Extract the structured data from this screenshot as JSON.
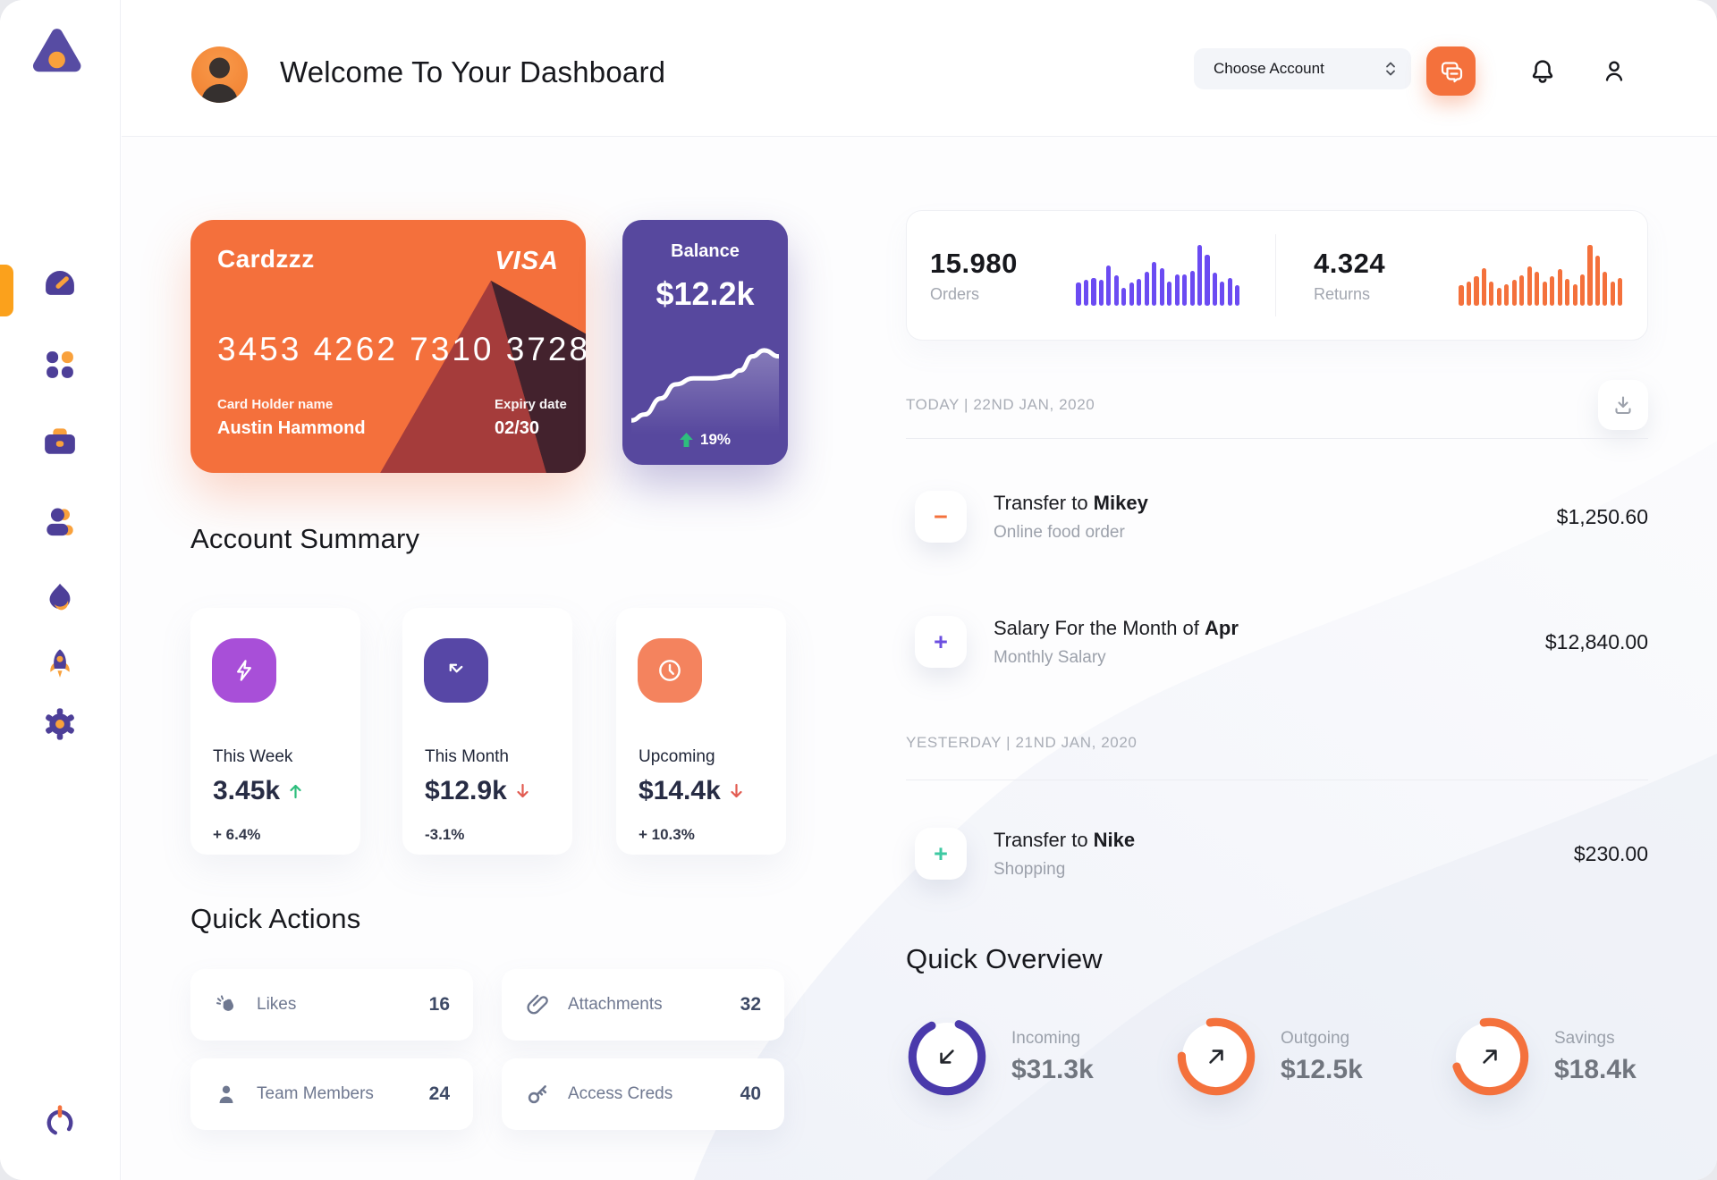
{
  "header": {
    "title": "Welcome To Your Dashboard",
    "account_selector_label": "Choose Account"
  },
  "sidebar": {
    "active_item": "dashboard",
    "accent_color": "#FBA11C",
    "items": [
      "dashboard",
      "apps",
      "work",
      "team",
      "trending",
      "launch",
      "settings"
    ]
  },
  "credit_card": {
    "name": "Cardzzz",
    "brand": "VISA",
    "number": "3453 4262 7310 3728",
    "holder_label": "Card Holder name",
    "holder": "Austin Hammond",
    "expiry_label": "Expiry date",
    "expiry": "02/30",
    "color": "#F4703C"
  },
  "balance_card": {
    "label": "Balance",
    "value": "$12.2k",
    "change": "19%",
    "trend": "up",
    "color": "#57489E"
  },
  "stats": {
    "orders": {
      "value": "15.980",
      "label": "Orders"
    },
    "returns": {
      "value": "4.324",
      "label": "Returns"
    }
  },
  "transactions": {
    "groups": [
      {
        "header": "TODAY | 22ND JAN, 2020"
      },
      {
        "header": "YESTERDAY | 21ND JAN, 2020"
      }
    ],
    "rows": [
      {
        "sign": "−",
        "sign_color": "#F4713C",
        "title_prefix": "Transfer to ",
        "title_bold": "Mikey",
        "subtitle": "Online food order",
        "amount": "$1,250.60"
      },
      {
        "sign": "+",
        "sign_color": "#6C4FE0",
        "title_prefix": "Salary For the Month of ",
        "title_bold": "Apr",
        "subtitle": "Monthly Salary",
        "amount": "$12,840.00"
      },
      {
        "sign": "+",
        "sign_color": "#3EC9A2",
        "title_prefix": "Transfer to ",
        "title_bold": "Nike",
        "subtitle": "Shopping",
        "amount": "$230.00"
      }
    ]
  },
  "account_summary": {
    "title": "Account Summary",
    "cards": [
      {
        "icon": "lightning-icon",
        "icon_bg": "#A84FD8",
        "label": "This Week",
        "value": "3.45k",
        "trend": "up",
        "percent": "+ 6.4%"
      },
      {
        "icon": "bounce-arrow-icon",
        "icon_bg": "#5747A6",
        "label": "This Month",
        "value": "$12.9k",
        "trend": "down",
        "percent": "-3.1%"
      },
      {
        "icon": "clock-icon",
        "icon_bg": "#F4835E",
        "label": "Upcoming",
        "value": "$14.4k",
        "trend": "down",
        "percent": "+ 10.3%"
      }
    ],
    "trend_up_color": "#2EBE7D",
    "trend_down_color": "#E25C52"
  },
  "quick_actions": {
    "title": "Quick Actions",
    "items": [
      {
        "icon": "clap-icon",
        "label": "Likes",
        "count": "16"
      },
      {
        "icon": "paperclip-icon",
        "label": "Attachments",
        "count": "32"
      },
      {
        "icon": "person-icon",
        "label": "Team Members",
        "count": "24"
      },
      {
        "icon": "key-icon",
        "label": "Access Creds",
        "count": "40"
      }
    ]
  },
  "quick_overview": {
    "title": "Quick Overview",
    "items": [
      {
        "label": "Incoming",
        "value": "$31.3k",
        "chart": "incoming_ring",
        "direction": "down-left"
      },
      {
        "label": "Outgoing",
        "value": "$12.5k",
        "chart": "outgoing_ring",
        "direction": "up-right"
      },
      {
        "label": "Savings",
        "value": "$18.4k",
        "chart": "savings_ring",
        "direction": "up-right"
      }
    ]
  },
  "chart_data": [
    {
      "type": "bar",
      "name": "orders_mini",
      "title": "Orders mini bar chart",
      "unit": "relative",
      "color": "#6B4BF2",
      "values": [
        38,
        42,
        46,
        42,
        66,
        50,
        30,
        38,
        44,
        56,
        72,
        62,
        40,
        52,
        52,
        58,
        100,
        84,
        54,
        40,
        46,
        34
      ]
    },
    {
      "type": "bar",
      "name": "returns_mini",
      "title": "Returns mini bar chart",
      "unit": "relative",
      "color": "#F4713C",
      "values": [
        34,
        40,
        48,
        62,
        40,
        30,
        36,
        42,
        50,
        64,
        56,
        40,
        48,
        60,
        44,
        36,
        52,
        100,
        82,
        56,
        40,
        46
      ]
    },
    {
      "type": "line",
      "name": "balance_trend",
      "title": "Balance trend sparkline",
      "color": "#FFFFFF",
      "points": [
        [
          0,
          86
        ],
        [
          9,
          80
        ],
        [
          20,
          64
        ],
        [
          30,
          50
        ],
        [
          42,
          44
        ],
        [
          55,
          44
        ],
        [
          66,
          42
        ],
        [
          74,
          36
        ],
        [
          82,
          22
        ],
        [
          90,
          16
        ],
        [
          100,
          22
        ]
      ]
    },
    {
      "type": "donut",
      "name": "incoming_ring",
      "pct": 87,
      "color": "#4A3AAB"
    },
    {
      "type": "donut",
      "name": "outgoing_ring",
      "pct": 78,
      "color": "#F4713C"
    },
    {
      "type": "donut",
      "name": "savings_ring",
      "pct": 73,
      "color": "#F4713C"
    }
  ]
}
